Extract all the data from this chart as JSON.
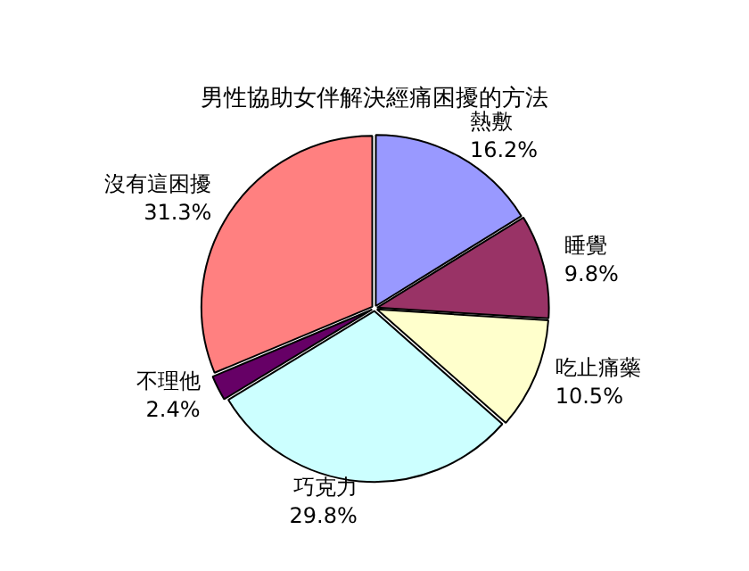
{
  "chart_data": {
    "type": "pie",
    "title": "男性協助女伴解決經痛困擾的方法",
    "categories": [
      "熱敷",
      "睡覺",
      "吃止痛藥",
      "巧克力",
      "不理他",
      "沒有這困擾"
    ],
    "values": [
      16.2,
      9.8,
      10.5,
      29.8,
      2.4,
      31.3
    ],
    "value_labels": [
      "16.2%",
      "9.8%",
      "10.5%",
      "29.8%",
      "2.4%",
      "31.3%"
    ],
    "colors": [
      "#9999ff",
      "#993366",
      "#ffffcc",
      "#ccffff",
      "#660066",
      "#ff8080"
    ],
    "legend": false
  }
}
